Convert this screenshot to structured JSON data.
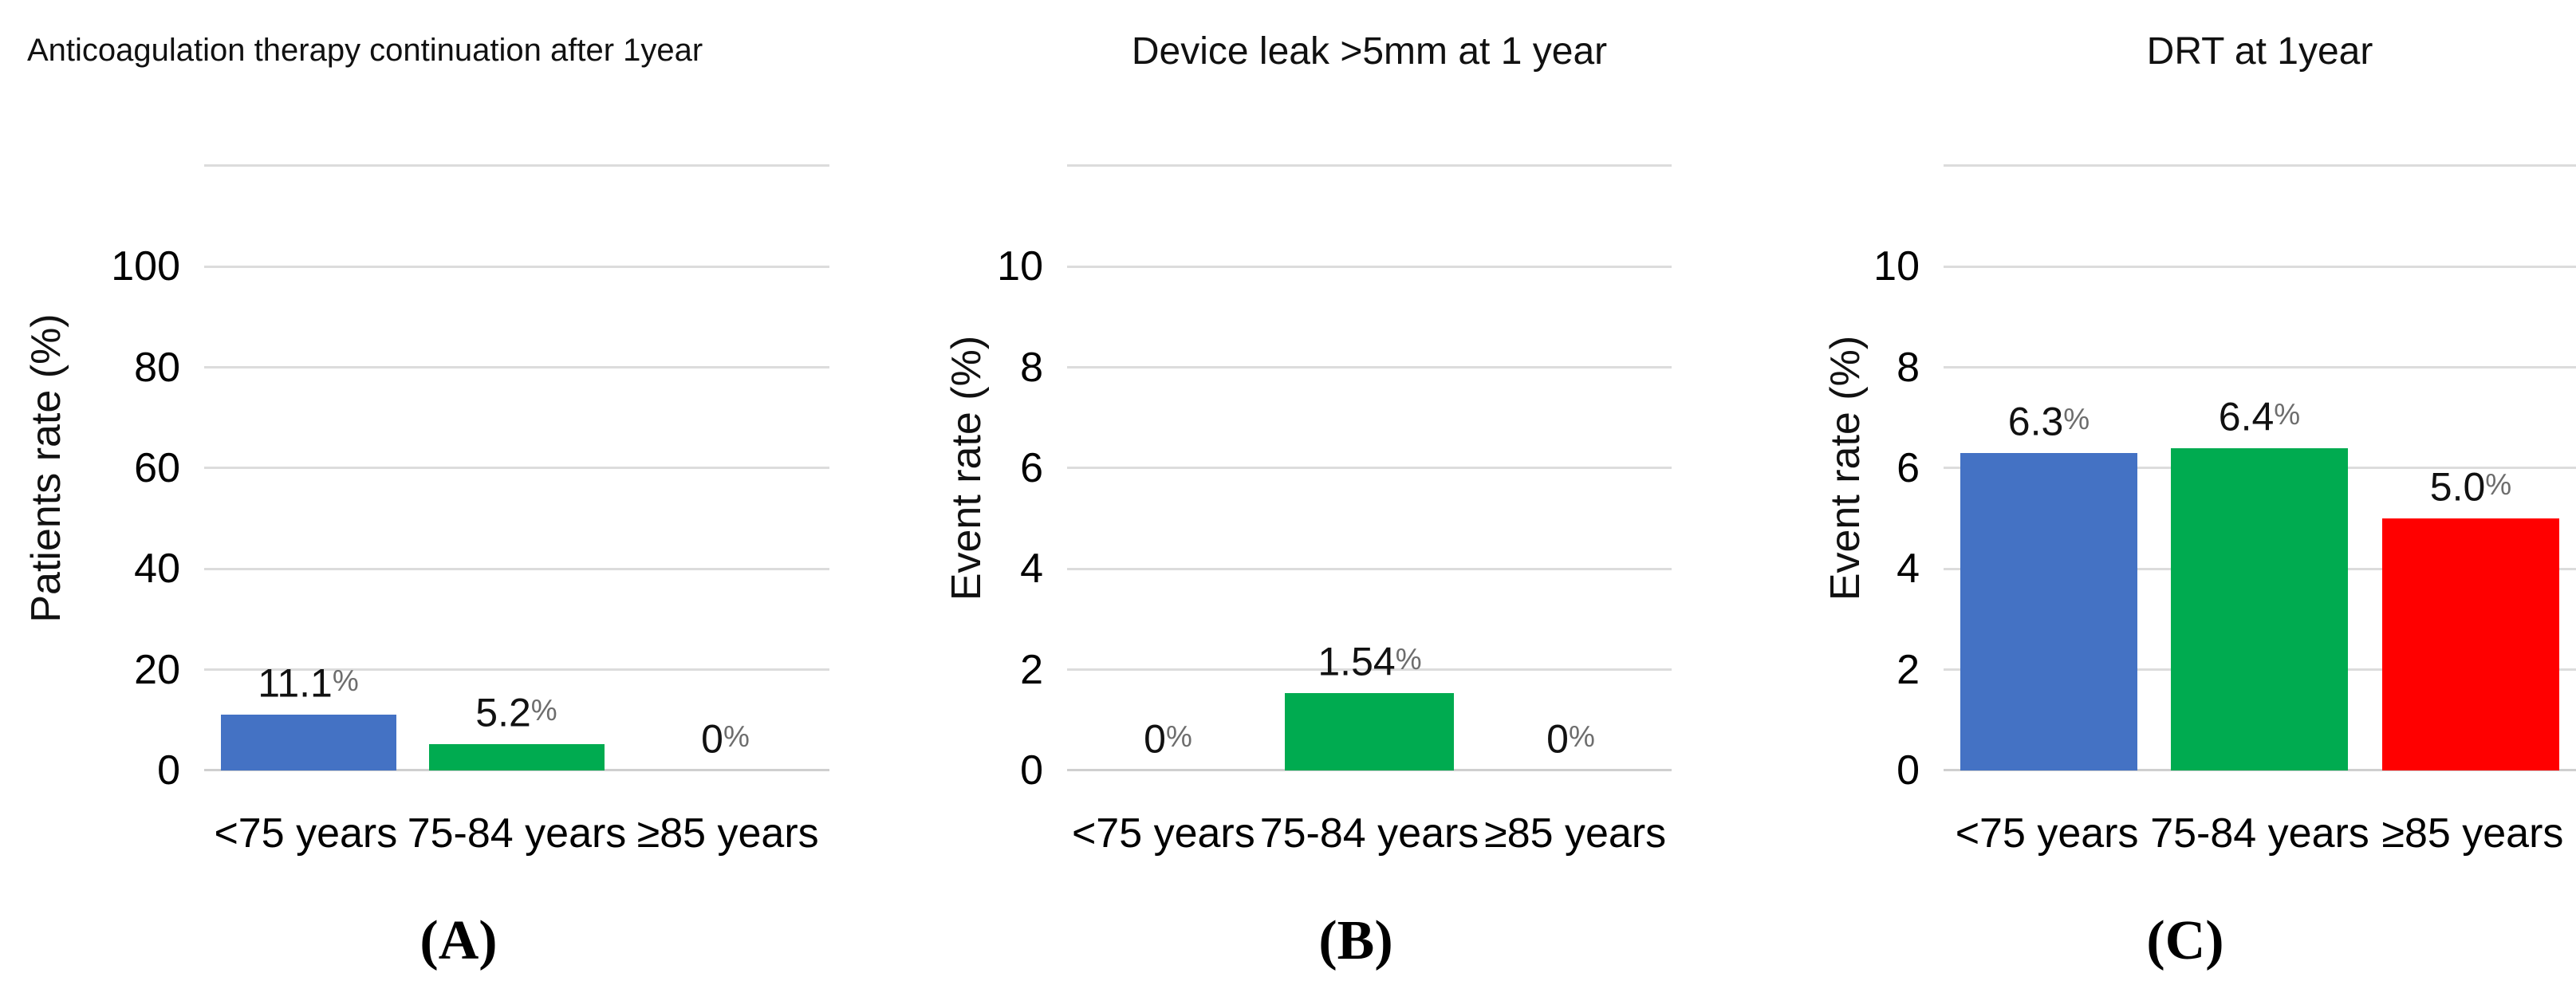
{
  "palette": {
    "bar_blue": "#4472C4",
    "bar_green": "#00AB50",
    "bar_red": "#FF0000",
    "gridline": "#DCDCDC",
    "baseline": "#CFCFCF",
    "text": "#111111"
  },
  "chart_data": [
    {
      "panel_label": "(A)",
      "type": "bar",
      "title": "Anticoagulation therapy continuation after 1year",
      "ylabel": "Patients rate (%)",
      "xlabel": "",
      "categories": [
        "<75 years",
        "75-84 years",
        "≥85 years"
      ],
      "values": [
        11.1,
        5.2,
        0
      ],
      "value_labels": [
        "11.1%",
        "5.2%",
        "0%"
      ],
      "bar_colors": [
        "#4472C4",
        "#00AB50",
        "#FF0000"
      ],
      "yaxis": {
        "min": 0,
        "max": 120,
        "tick_step": 20,
        "max_labeled": 100,
        "tick_labels": [
          "0",
          "20",
          "40",
          "60",
          "80",
          "100"
        ]
      },
      "grid": true,
      "legend": false
    },
    {
      "panel_label": "(B)",
      "type": "bar",
      "title": "Device leak >5mm at 1 year",
      "ylabel": "Event rate (%)",
      "xlabel": "",
      "categories": [
        "<75 years",
        "75-84 years",
        "≥85 years"
      ],
      "values": [
        0,
        1.54,
        0
      ],
      "value_labels": [
        "0%",
        "1.54%",
        "0%"
      ],
      "bar_colors": [
        "#4472C4",
        "#00AB50",
        "#FF0000"
      ],
      "yaxis": {
        "min": 0,
        "max": 12,
        "tick_step": 2,
        "max_labeled": 10,
        "tick_labels": [
          "0",
          "2",
          "4",
          "6",
          "8",
          "10"
        ]
      },
      "grid": true,
      "legend": false
    },
    {
      "panel_label": "(C)",
      "type": "bar",
      "title": "DRT at 1year",
      "ylabel": "Event rate (%)",
      "xlabel": "",
      "categories": [
        "<75 years",
        "75-84 years",
        "≥85 years"
      ],
      "values": [
        6.3,
        6.4,
        5.0
      ],
      "value_labels": [
        "6.3%",
        "6.4%",
        "5.0%"
      ],
      "bar_colors": [
        "#4472C4",
        "#00AB50",
        "#FF0000"
      ],
      "yaxis": {
        "min": 0,
        "max": 12,
        "tick_step": 2,
        "max_labeled": 10,
        "tick_labels": [
          "0",
          "2",
          "4",
          "6",
          "8",
          "10"
        ]
      },
      "grid": true,
      "legend": false
    }
  ]
}
